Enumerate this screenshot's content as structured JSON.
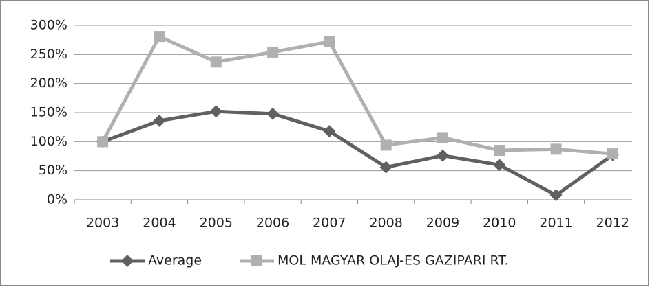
{
  "chart_data": {
    "type": "line",
    "categories": [
      "2003",
      "2004",
      "2005",
      "2006",
      "2007",
      "2008",
      "2009",
      "2010",
      "2011",
      "2012"
    ],
    "series": [
      {
        "name": "Average",
        "color": "#606060",
        "marker": "diamond",
        "values": [
          100,
          136,
          152,
          148,
          118,
          56,
          76,
          60,
          8,
          77
        ]
      },
      {
        "name": "MOL MAGYAR OLAJ-ES GAZIPARI RT.",
        "color": "#b0b0b0",
        "marker": "square",
        "values": [
          100,
          281,
          237,
          254,
          272,
          94,
          107,
          85,
          87,
          79
        ]
      }
    ],
    "ylim": [
      0,
      300
    ],
    "yticks": [
      {
        "value": 0,
        "label": "0%"
      },
      {
        "value": 50,
        "label": "50%"
      },
      {
        "value": 100,
        "label": "100%"
      },
      {
        "value": 150,
        "label": "150%"
      },
      {
        "value": 200,
        "label": "200%"
      },
      {
        "value": 250,
        "label": "250%"
      },
      {
        "value": 300,
        "label": "300%"
      }
    ],
    "grid": true,
    "legend": "bottom"
  }
}
